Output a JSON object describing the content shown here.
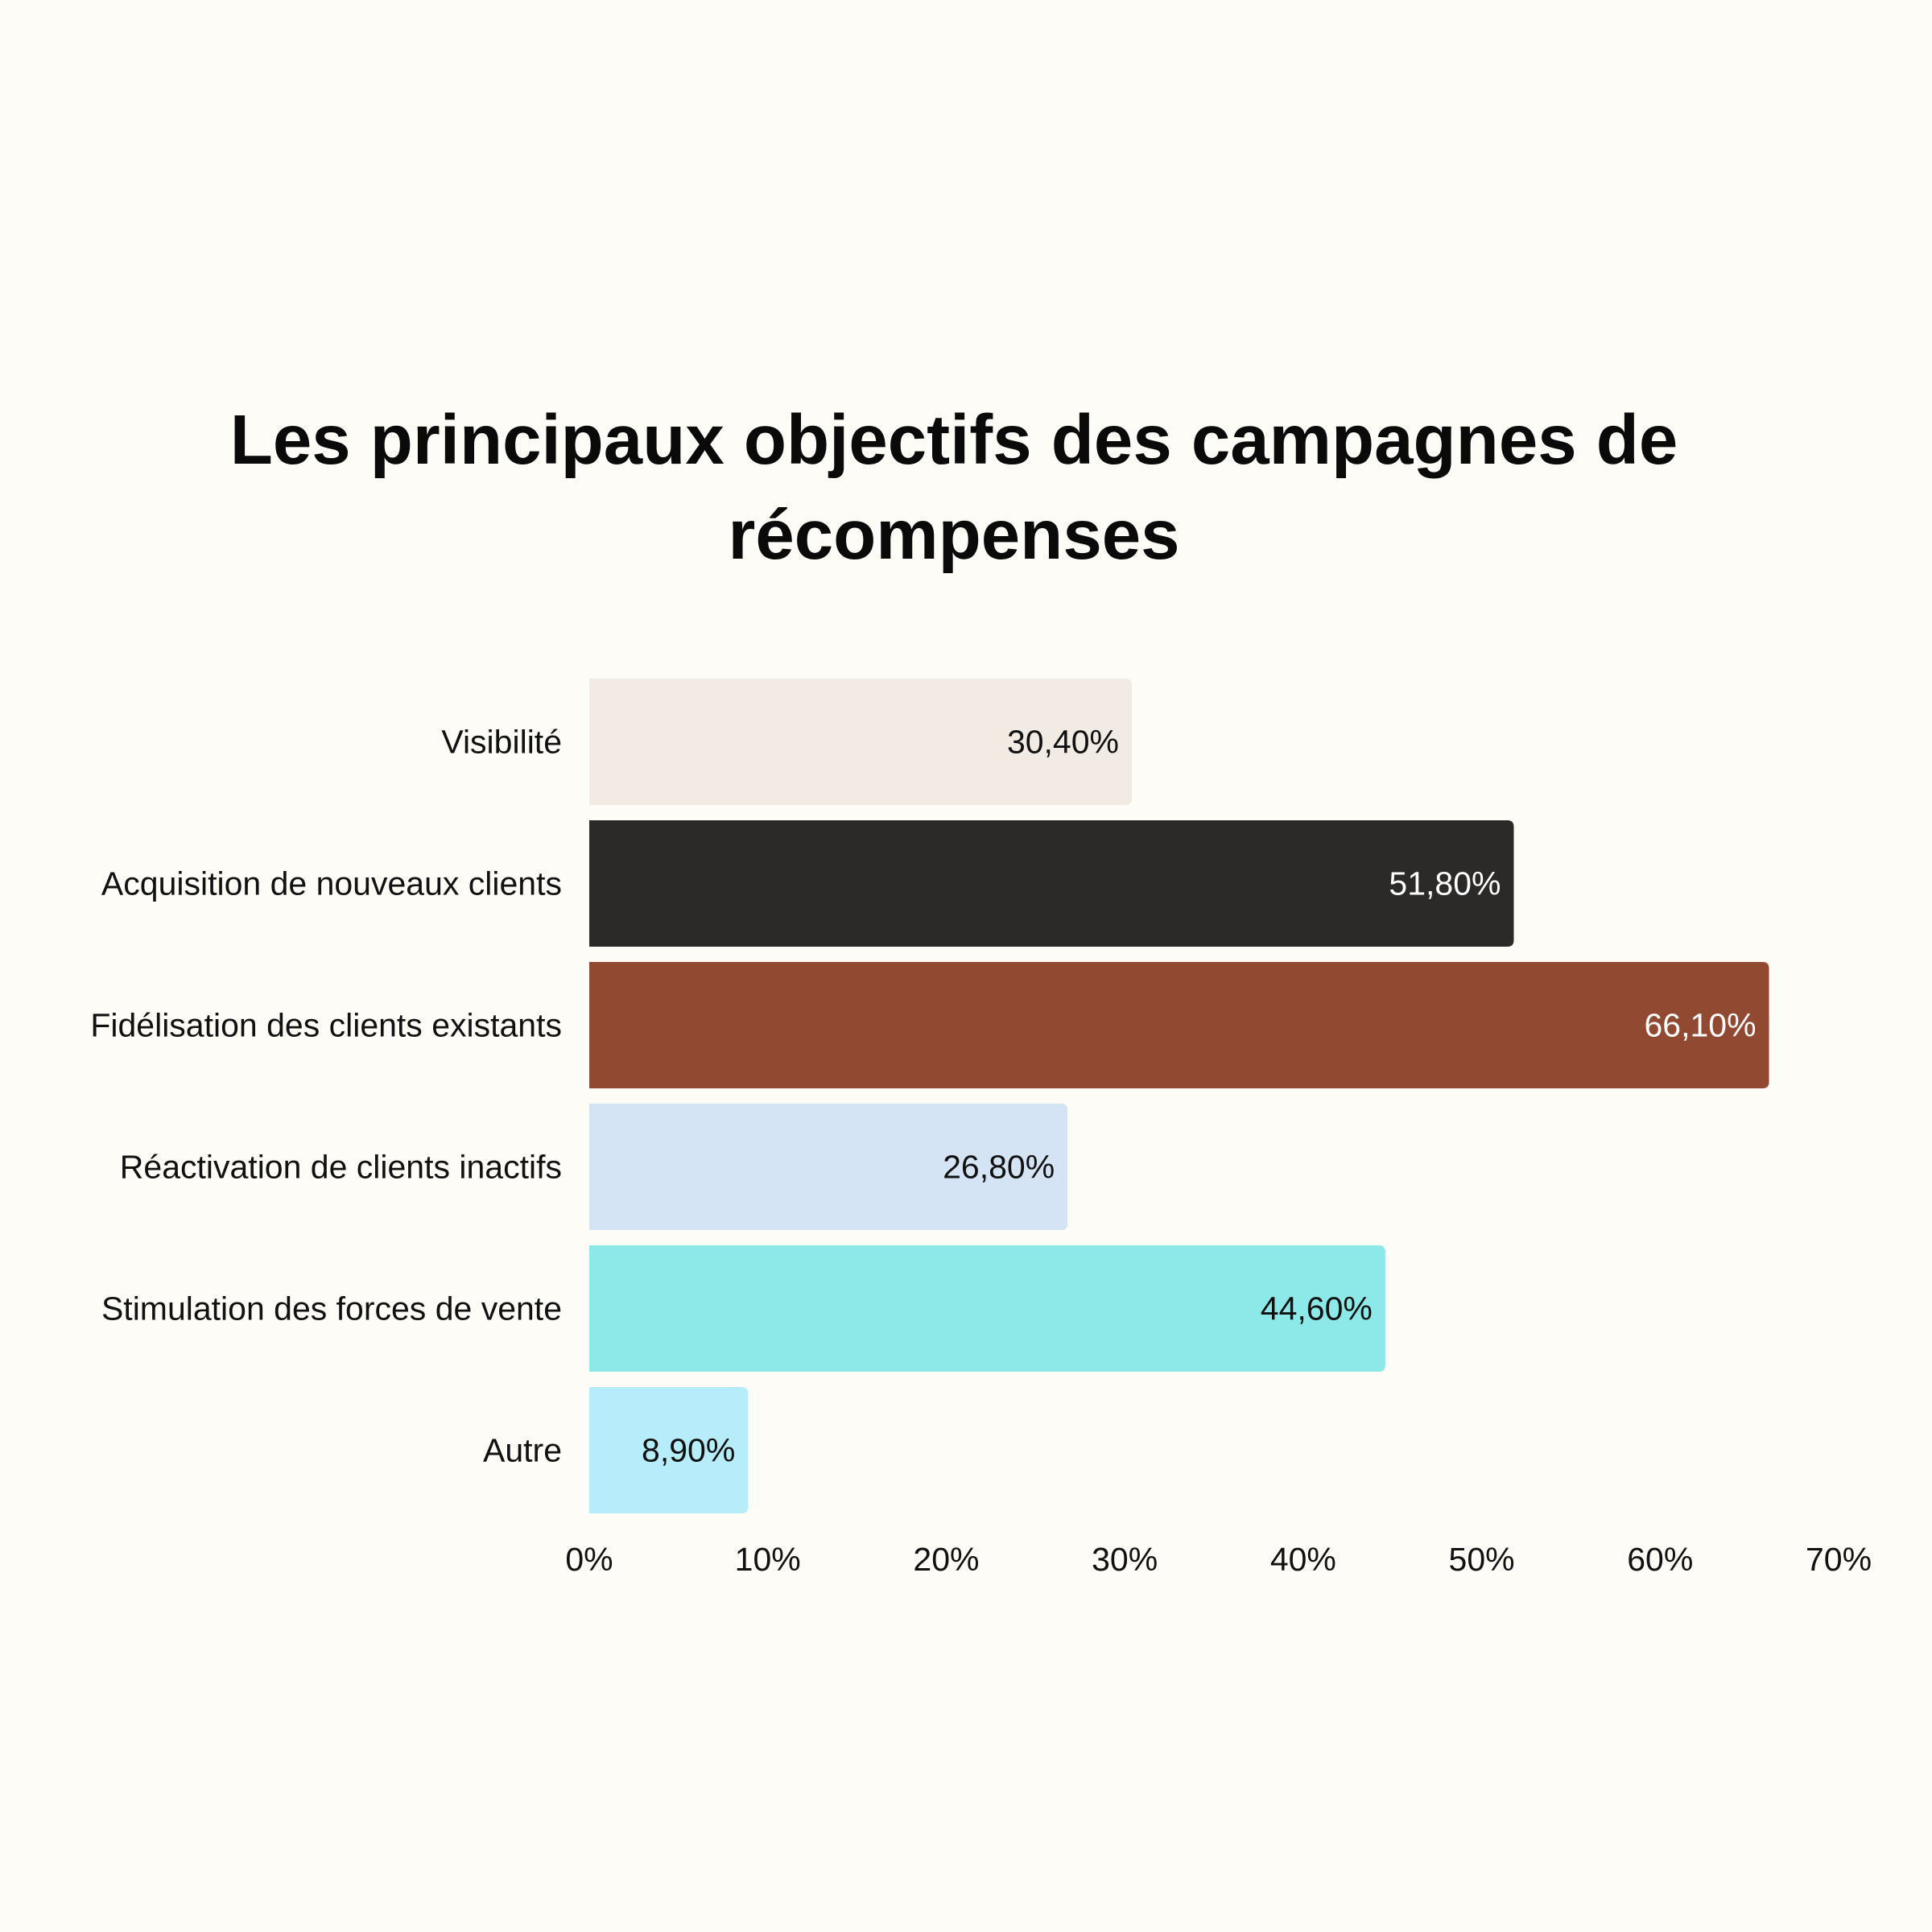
{
  "chart_data": {
    "type": "bar",
    "orientation": "horizontal",
    "title": "Les principaux objectifs des campagnes de récompenses",
    "categories": [
      "Visibilité",
      "Acquisition de nouveaux clients",
      "Fidélisation des clients existants",
      "Réactivation de clients inactifs",
      "Stimulation des forces de vente",
      "Autre"
    ],
    "values": [
      30.4,
      51.8,
      66.1,
      26.8,
      44.6,
      8.9
    ],
    "value_labels": [
      "30,40%",
      "51,80%",
      "66,10%",
      "26,80%",
      "44,60%",
      "8,90%"
    ],
    "bar_colors": [
      "#f2ebe3",
      "#2b2a29",
      "#914a31",
      "#d5e4f4",
      "#8de8e8",
      "#b7ecfa"
    ],
    "label_colors": [
      "#111111",
      "#ffffff",
      "#ffffff",
      "#111111",
      "#111111",
      "#111111"
    ],
    "xlim": [
      0,
      70
    ],
    "x_ticks": [
      0,
      10,
      20,
      30,
      40,
      50,
      60,
      70
    ],
    "x_tick_labels": [
      "0%",
      "10%",
      "20%",
      "30%",
      "40%",
      "50%",
      "60%",
      "70%"
    ],
    "xlabel": "",
    "ylabel": "",
    "grid": false,
    "legend": "none"
  }
}
